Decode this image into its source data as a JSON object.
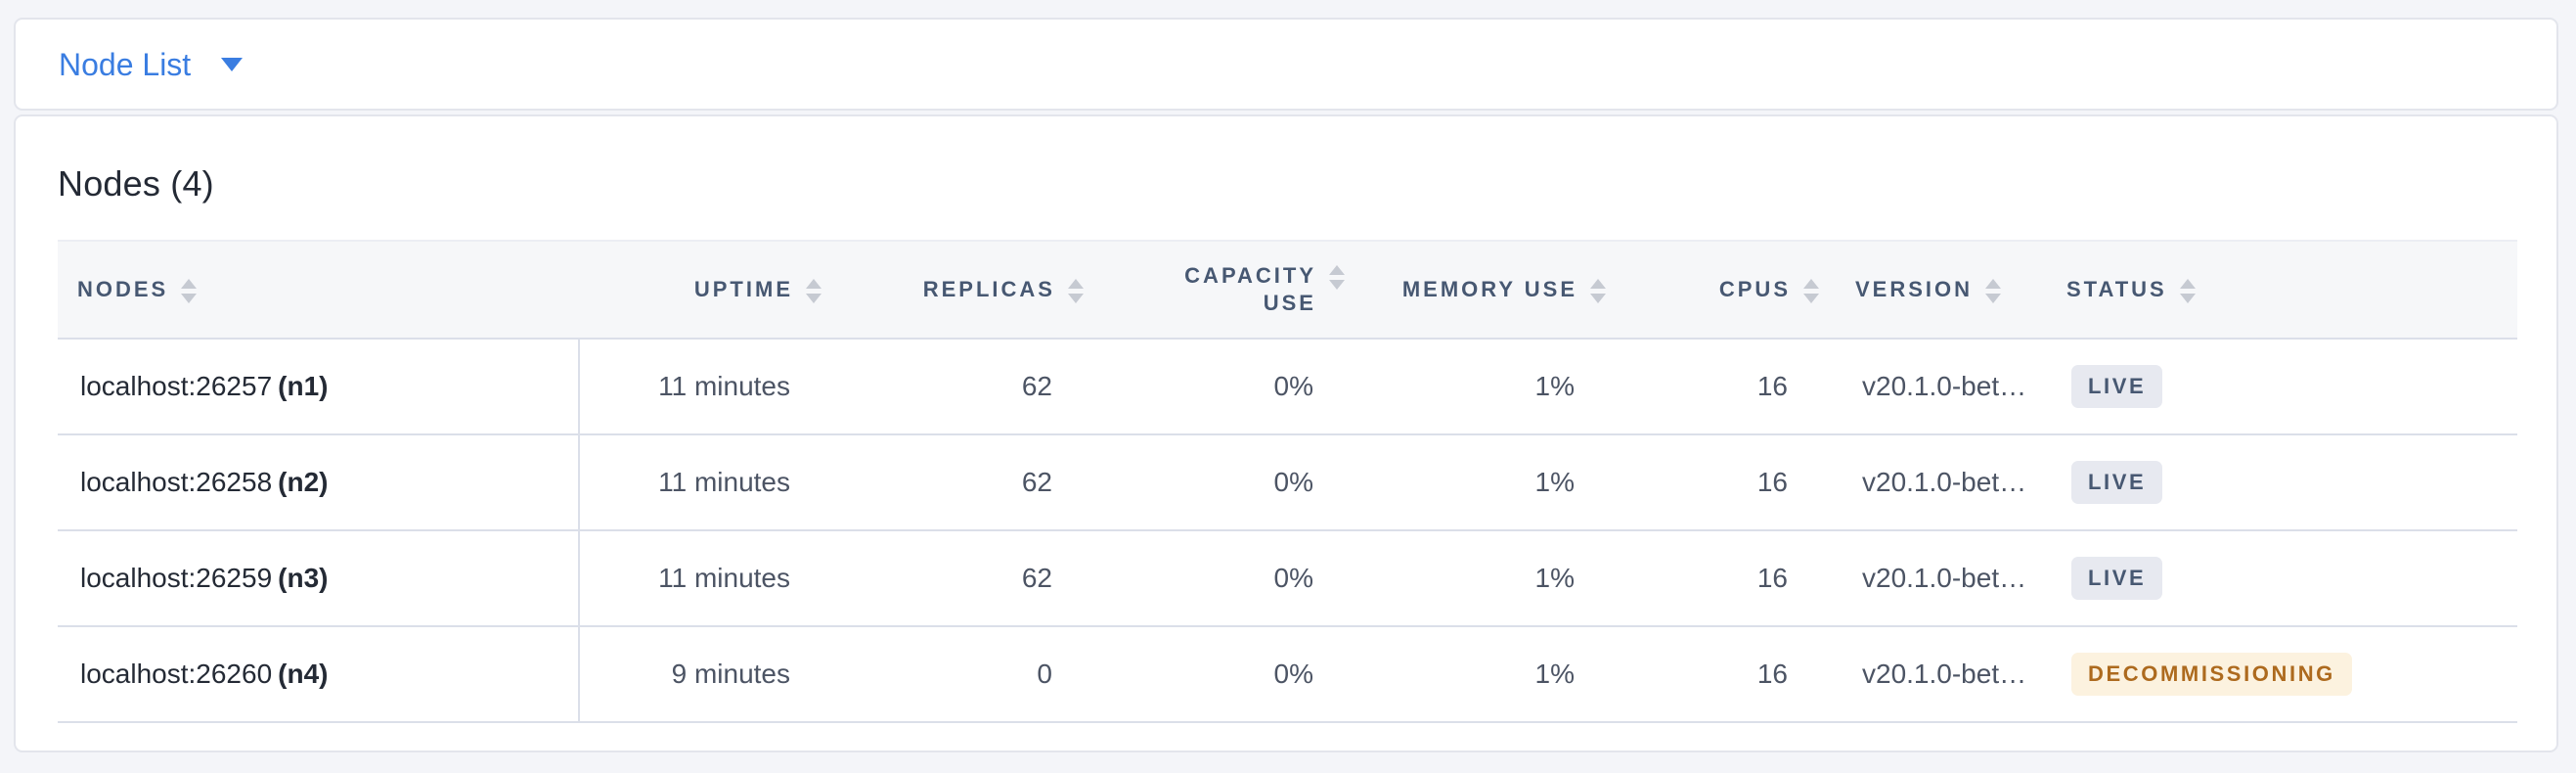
{
  "topbar": {
    "dropdown_label": "Node List",
    "chevron_icon": "chevron-down"
  },
  "card": {
    "title": "Nodes (4)"
  },
  "table": {
    "columns": [
      {
        "key": "nodes",
        "label": "Nodes",
        "label_lines": [
          "NODES"
        ],
        "align": "left",
        "sortable": true
      },
      {
        "key": "uptime",
        "label": "Uptime",
        "label_lines": [
          "UPTIME"
        ],
        "align": "right",
        "sortable": true
      },
      {
        "key": "replicas",
        "label": "Replicas",
        "label_lines": [
          "REPLICAS"
        ],
        "align": "right",
        "sortable": true
      },
      {
        "key": "capacity",
        "label": "Capacity Use",
        "label_lines": [
          "CAPACITY",
          "USE"
        ],
        "align": "right",
        "sortable": true
      },
      {
        "key": "memory",
        "label": "Memory Use",
        "label_lines": [
          "MEMORY USE"
        ],
        "align": "right",
        "sortable": true
      },
      {
        "key": "cpus",
        "label": "CPUs",
        "label_lines": [
          "CPUS"
        ],
        "align": "right",
        "sortable": true
      },
      {
        "key": "version",
        "label": "Version",
        "label_lines": [
          "VERSION"
        ],
        "align": "left",
        "sortable": true
      },
      {
        "key": "status",
        "label": "Status",
        "label_lines": [
          "STATUS"
        ],
        "align": "left",
        "sortable": true
      }
    ],
    "rows": [
      {
        "address": "localhost:26257",
        "node_id": "(n1)",
        "uptime": "11 minutes",
        "replicas": "62",
        "capacity_use": "0%",
        "memory_use": "1%",
        "cpus": "16",
        "version": "v20.1.0-bet…",
        "status_label": "LIVE",
        "status_type": "live"
      },
      {
        "address": "localhost:26258",
        "node_id": "(n2)",
        "uptime": "11 minutes",
        "replicas": "62",
        "capacity_use": "0%",
        "memory_use": "1%",
        "cpus": "16",
        "version": "v20.1.0-bet…",
        "status_label": "LIVE",
        "status_type": "live"
      },
      {
        "address": "localhost:26259",
        "node_id": "(n3)",
        "uptime": "11 minutes",
        "replicas": "62",
        "capacity_use": "0%",
        "memory_use": "1%",
        "cpus": "16",
        "version": "v20.1.0-bet…",
        "status_label": "LIVE",
        "status_type": "live"
      },
      {
        "address": "localhost:26260",
        "node_id": "(n4)",
        "uptime": "9 minutes",
        "replicas": "0",
        "capacity_use": "0%",
        "memory_use": "1%",
        "cpus": "16",
        "version": "v20.1.0-bet…",
        "status_label": "DECOMMISSIONING",
        "status_type": "decommissioning"
      }
    ]
  },
  "colors": {
    "accent_blue": "#3a7de1",
    "page_background": "#f4f5f9",
    "card_background": "#ffffff",
    "card_border": "#e3e5ec",
    "table_header_background": "#f6f7f9",
    "table_header_text": "#475872",
    "row_border": "#dbdfe9",
    "cell_text": "#4c5464",
    "node_text": "#242a35",
    "sort_arrow": "#c6cad2",
    "badge_live_background": "#e7e9f0",
    "badge_live_text": "#475872",
    "badge_decommissioning_background": "#fcf2df",
    "badge_decommissioning_text": "#ad6a1e"
  }
}
